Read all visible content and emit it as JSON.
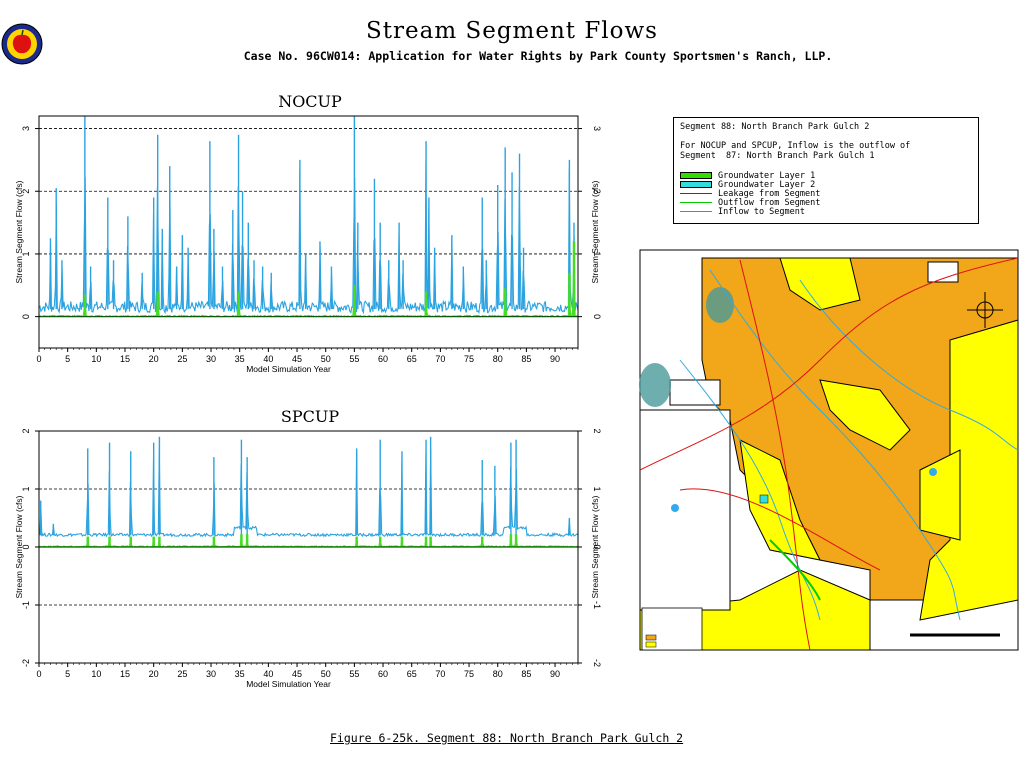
{
  "header": {
    "title": "Stream Segment Flows",
    "subtitle": "Case No. 96CW014: Application for Water Rights by Park County Sportsmen's Ranch, LLP."
  },
  "legend": {
    "segment": "Segment 88: North Branch Park Gulch 2",
    "note_line1": "For NOCUP and SPCUP, Inflow is the outflow of",
    "note_line2": "Segment  87: North Branch Park Gulch 1",
    "items": [
      {
        "label": "Groundwater Layer 1",
        "color": "#33dd00",
        "kind": "box"
      },
      {
        "label": "Groundwater Layer 2",
        "color": "#33dddd",
        "kind": "box"
      },
      {
        "label": "Leakage from Segment",
        "color": "#dd0000",
        "kind": "line"
      },
      {
        "label": "Outflow from Segment",
        "color": "#00cc00",
        "kind": "line"
      },
      {
        "label": "Inflow to Segment",
        "color": "#2299dd",
        "kind": "line"
      }
    ]
  },
  "caption": "Figure 6-25k.  Segment 88: North Branch Park Gulch 2",
  "colors": {
    "inflow": "#2aa3e0",
    "groundwater": "#44dd22",
    "map_orange": "#f2a61a",
    "map_yellow": "#ffff00"
  },
  "chart_data": [
    {
      "type": "line",
      "title": "NOCUP",
      "xlabel": "Model Simulation Year",
      "ylabel": "Stream Segment Flow (cfs)",
      "xlim": [
        0,
        94
      ],
      "ylim": [
        -0.5,
        3.2
      ],
      "xticks": [
        "0",
        "5",
        "10",
        "15",
        "20",
        "25",
        "30",
        "35",
        "40",
        "45",
        "50",
        "55",
        "60",
        "65",
        "70",
        "75",
        "80",
        "85",
        "90"
      ],
      "yticks": [
        "0",
        "1",
        "2",
        "3"
      ],
      "dashed_gridlines": [
        1,
        2,
        3
      ],
      "series": [
        {
          "name": "Inflow to Segment",
          "baseline": 0.12,
          "peaks": [
            [
              2,
              1.25
            ],
            [
              3,
              2.05
            ],
            [
              4,
              0.9
            ],
            [
              8,
              3.2
            ],
            [
              9,
              0.8
            ],
            [
              12,
              1.9
            ],
            [
              13,
              0.9
            ],
            [
              15.5,
              1.6
            ],
            [
              18,
              0.7
            ],
            [
              20,
              1.9
            ],
            [
              20.7,
              2.9
            ],
            [
              21.5,
              1.4
            ],
            [
              22.8,
              2.4
            ],
            [
              24,
              0.8
            ],
            [
              25,
              1.3
            ],
            [
              26,
              1.1
            ],
            [
              29.8,
              2.8
            ],
            [
              30.5,
              1.4
            ],
            [
              32,
              0.8
            ],
            [
              33.8,
              1.7
            ],
            [
              34.8,
              2.9
            ],
            [
              35.5,
              2.0
            ],
            [
              36.5,
              1.5
            ],
            [
              37.5,
              0.9
            ],
            [
              39,
              0.8
            ],
            [
              40.5,
              0.7
            ],
            [
              45.5,
              2.5
            ],
            [
              46.5,
              1.0
            ],
            [
              49,
              1.2
            ],
            [
              51,
              0.8
            ],
            [
              55,
              3.2
            ],
            [
              55.6,
              1.5
            ],
            [
              58.5,
              2.2
            ],
            [
              59.5,
              1.5
            ],
            [
              61,
              0.9
            ],
            [
              62.8,
              1.5
            ],
            [
              63.5,
              0.9
            ],
            [
              67.5,
              2.8
            ],
            [
              68,
              1.9
            ],
            [
              69,
              1.1
            ],
            [
              72,
              1.3
            ],
            [
              74,
              0.8
            ],
            [
              77.3,
              1.9
            ],
            [
              78,
              0.9
            ],
            [
              80,
              2.1
            ],
            [
              81.3,
              2.7
            ],
            [
              82.5,
              2.3
            ],
            [
              83.8,
              2.6
            ],
            [
              84.5,
              1.1
            ],
            [
              92.5,
              2.5
            ],
            [
              93.3,
              1.5
            ]
          ]
        },
        {
          "name": "Groundwater Layer 1",
          "baseline": 0.0,
          "peaks": [
            [
              8,
              0.35
            ],
            [
              20.7,
              0.4
            ],
            [
              34.8,
              0.4
            ],
            [
              55,
              0.5
            ],
            [
              67.5,
              0.4
            ],
            [
              81.3,
              0.45
            ],
            [
              92.5,
              0.7
            ],
            [
              93.3,
              1.2
            ]
          ]
        }
      ]
    },
    {
      "type": "line",
      "title": "SPCUP",
      "xlabel": "Model Simulation Year",
      "ylabel": "Stream Segment Flow (cfs)",
      "xlim": [
        0,
        94
      ],
      "ylim": [
        -2,
        2
      ],
      "xticks": [
        "0",
        "5",
        "10",
        "15",
        "20",
        "25",
        "30",
        "35",
        "40",
        "45",
        "50",
        "55",
        "60",
        "65",
        "70",
        "75",
        "80",
        "85",
        "90"
      ],
      "yticks": [
        "-2",
        "-1",
        "0",
        "1",
        "2"
      ],
      "dashed_gridlines": [
        1,
        -1
      ],
      "series": [
        {
          "name": "Inflow to Segment",
          "baseline": 0.2,
          "peaks": [
            [
              0.3,
              0.8
            ],
            [
              2.5,
              0.4
            ],
            [
              8.5,
              1.7
            ],
            [
              12.3,
              1.8
            ],
            [
              16,
              1.65
            ],
            [
              20,
              1.8
            ],
            [
              21,
              1.9
            ],
            [
              30.5,
              1.55
            ],
            [
              35.3,
              1.85
            ],
            [
              36.3,
              1.55
            ],
            [
              55.4,
              1.7
            ],
            [
              59.5,
              1.85
            ],
            [
              63.3,
              1.65
            ],
            [
              67.5,
              1.85
            ],
            [
              68.3,
              1.9
            ],
            [
              77.3,
              1.5
            ],
            [
              79.5,
              1.4
            ],
            [
              82.3,
              1.8
            ],
            [
              83.2,
              1.85
            ],
            [
              92.5,
              0.5
            ]
          ]
        },
        {
          "name": "Groundwater Layer 1",
          "baseline": 0.0,
          "peaks": [
            [
              8.5,
              0.18
            ],
            [
              12.3,
              0.18
            ],
            [
              16,
              0.18
            ],
            [
              20,
              0.18
            ],
            [
              21,
              0.18
            ],
            [
              30.5,
              0.18
            ],
            [
              35.3,
              0.22
            ],
            [
              36.3,
              0.22
            ],
            [
              55.4,
              0.18
            ],
            [
              59.5,
              0.18
            ],
            [
              63.3,
              0.18
            ],
            [
              67.5,
              0.18
            ],
            [
              68.3,
              0.18
            ],
            [
              77.3,
              0.18
            ],
            [
              82.3,
              0.22
            ],
            [
              83.2,
              0.22
            ]
          ]
        }
      ]
    }
  ]
}
